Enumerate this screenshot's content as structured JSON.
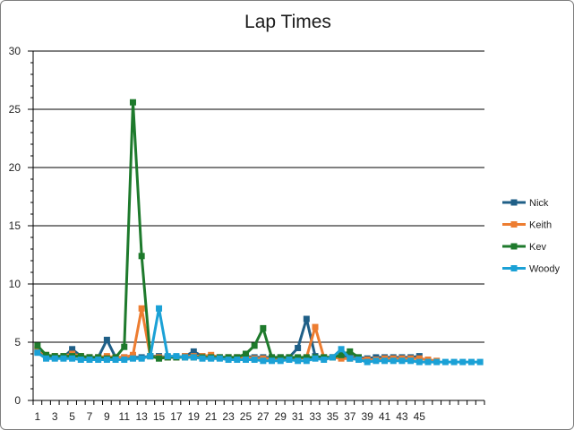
{
  "chart_data": {
    "type": "line",
    "title": "Lap Times",
    "xlabel": "",
    "ylabel": "",
    "ylim": [
      0,
      30
    ],
    "yticks": [
      0,
      5,
      10,
      15,
      20,
      25,
      30
    ],
    "x_count": 52,
    "x_tick_labels": [
      "1",
      "3",
      "5",
      "7",
      "9",
      "11",
      "13",
      "15",
      "17",
      "19",
      "21",
      "23",
      "25",
      "27",
      "29",
      "31",
      "33",
      "35",
      "37",
      "39",
      "41",
      "43",
      "45"
    ],
    "grid": "horizontal major gridlines",
    "legend_position": "right",
    "series": [
      {
        "name": "Nick",
        "color": "#1f5f87",
        "values": [
          4.2,
          3.8,
          3.7,
          3.7,
          4.4,
          3.8,
          3.7,
          3.7,
          5.2,
          3.7,
          3.7,
          3.7,
          3.7,
          3.8,
          3.8,
          3.7,
          3.7,
          3.8,
          4.2,
          3.8,
          3.7,
          3.7,
          3.7,
          3.7,
          3.8,
          3.7,
          3.7,
          3.7,
          3.7,
          3.7,
          4.5,
          7.0,
          3.8,
          3.7,
          3.7,
          3.8,
          3.7,
          3.7,
          3.6,
          3.7,
          3.7,
          3.7,
          3.7,
          3.7,
          3.8
        ]
      },
      {
        "name": "Keith",
        "color": "#ed7d31",
        "values": [
          4.4,
          3.9,
          3.8,
          3.8,
          4.0,
          3.8,
          3.7,
          3.7,
          3.8,
          3.7,
          3.7,
          3.9,
          7.9,
          3.8,
          3.7,
          3.7,
          3.7,
          3.8,
          3.8,
          3.8,
          3.9,
          3.7,
          3.7,
          3.7,
          3.7,
          3.6,
          3.6,
          3.6,
          3.6,
          3.6,
          3.6,
          3.7,
          6.3,
          3.7,
          3.7,
          3.6,
          3.6,
          3.6,
          3.5,
          3.5,
          3.6,
          3.6,
          3.6,
          3.6,
          3.6,
          3.5,
          3.4
        ]
      },
      {
        "name": "Kev",
        "color": "#1e7a2c",
        "values": [
          4.7,
          3.9,
          3.8,
          3.8,
          3.8,
          3.8,
          3.7,
          3.7,
          3.6,
          3.7,
          4.6,
          25.6,
          12.4,
          3.8,
          3.6,
          3.7,
          3.7,
          3.7,
          3.7,
          3.7,
          3.7,
          3.7,
          3.7,
          3.7,
          4.0,
          4.7,
          6.2,
          3.7,
          3.7,
          3.7,
          3.7,
          3.7,
          3.7,
          3.7,
          3.7,
          3.9,
          4.2,
          3.7
        ]
      },
      {
        "name": "Woody",
        "color": "#1ba1d6",
        "values": [
          4.1,
          3.6,
          3.6,
          3.6,
          3.6,
          3.5,
          3.5,
          3.5,
          3.5,
          3.5,
          3.5,
          3.6,
          3.6,
          3.8,
          7.9,
          3.8,
          3.8,
          3.7,
          3.7,
          3.6,
          3.6,
          3.6,
          3.5,
          3.5,
          3.5,
          3.5,
          3.4,
          3.4,
          3.4,
          3.5,
          3.4,
          3.4,
          3.6,
          3.5,
          3.7,
          4.4,
          3.6,
          3.5,
          3.3,
          3.4,
          3.4,
          3.4,
          3.4,
          3.4,
          3.3,
          3.3,
          3.3,
          3.3,
          3.3,
          3.3,
          3.3,
          3.3
        ]
      }
    ]
  }
}
